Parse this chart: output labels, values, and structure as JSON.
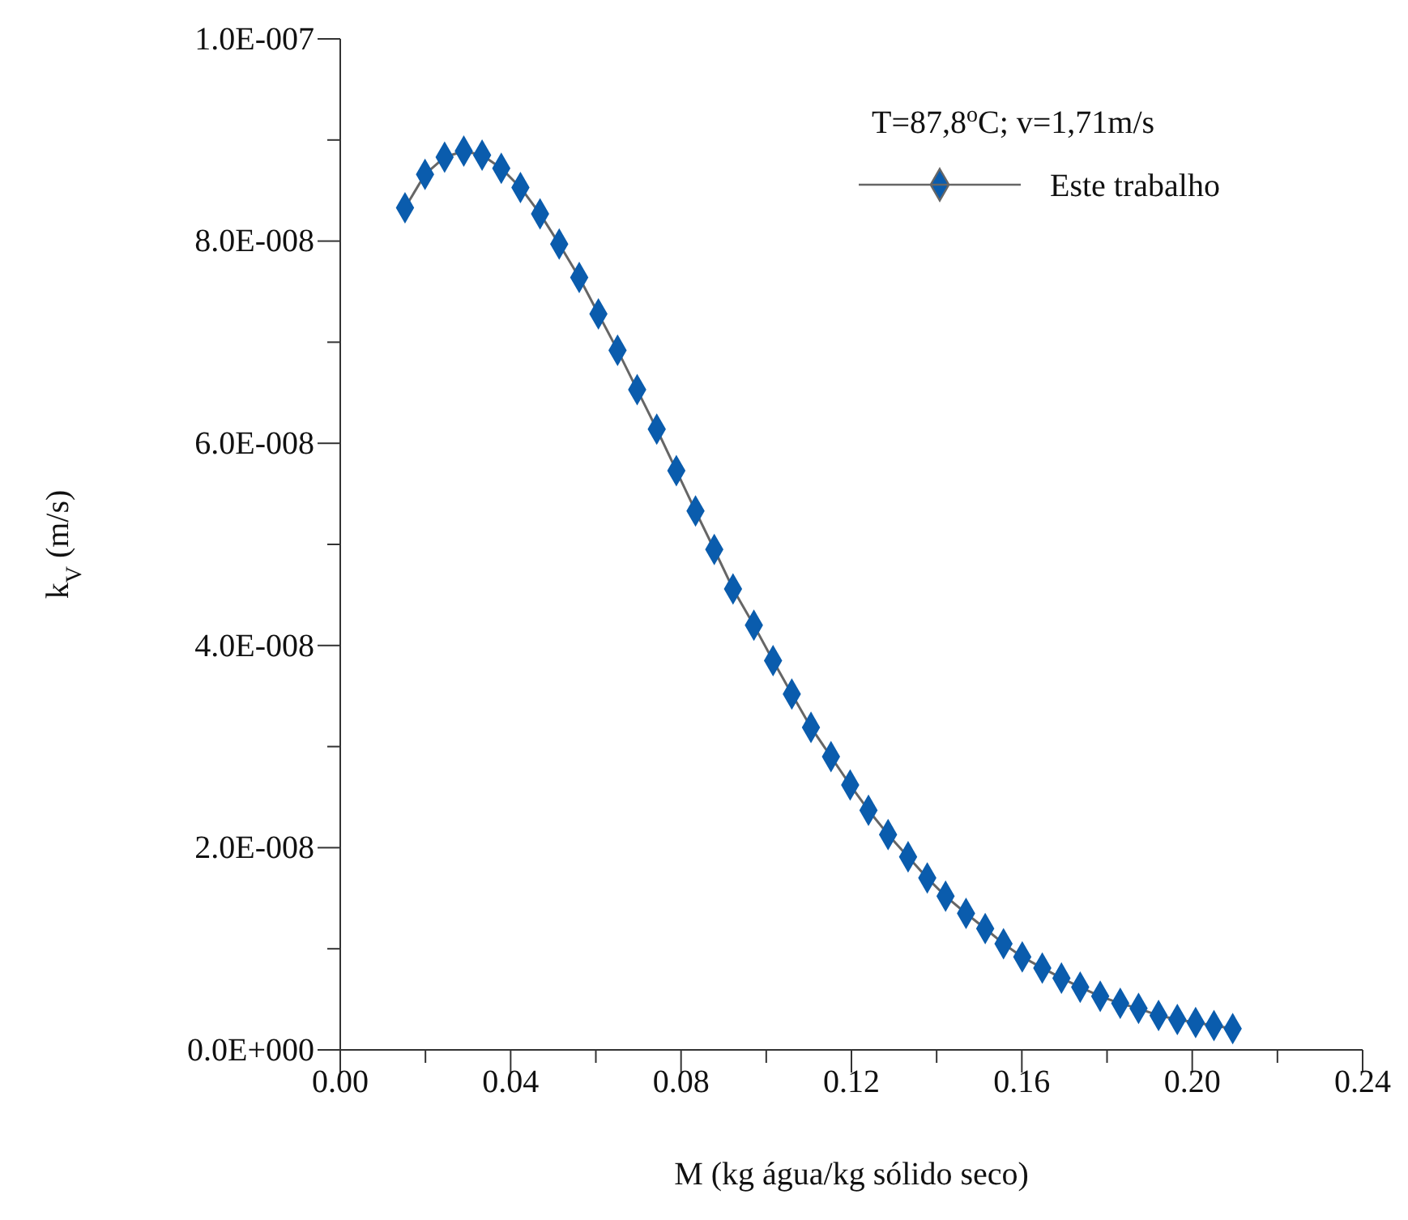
{
  "chart_data": {
    "type": "line",
    "xlabel": "M (kg água/kg sólido seco)",
    "ylabel": "k$_{V}$ (m/s)",
    "legend_title": "T=87,8$^{o}$C; v=1,71m/s",
    "legend": "top right",
    "marker": "diamond",
    "grid": false,
    "xlim": [
      0,
      0.24
    ],
    "ylim": [
      0,
      1e-07
    ],
    "xticks": [
      {
        "value": 0,
        "label": "0.00"
      },
      {
        "value": 0.02,
        "label": null
      },
      {
        "value": 0.04,
        "label": "0.04"
      },
      {
        "value": 0.06,
        "label": null
      },
      {
        "value": 0.08,
        "label": "0.08"
      },
      {
        "value": 0.1,
        "label": null
      },
      {
        "value": 0.12,
        "label": "0.12"
      },
      {
        "value": 0.14,
        "label": null
      },
      {
        "value": 0.16,
        "label": "0.16"
      },
      {
        "value": 0.18,
        "label": null
      },
      {
        "value": 0.2,
        "label": "0.20"
      },
      {
        "value": 0.22,
        "label": null
      },
      {
        "value": 0.24,
        "label": "0.24"
      }
    ],
    "yticks": [
      {
        "value": 0,
        "label": "0.0E+000"
      },
      {
        "value": 1e-08,
        "label": null
      },
      {
        "value": 2e-08,
        "label": "2.0E-008"
      },
      {
        "value": 3e-08,
        "label": null
      },
      {
        "value": 4e-08,
        "label": "4.0E-008"
      },
      {
        "value": 5e-08,
        "label": null
      },
      {
        "value": 6e-08,
        "label": "6.0E-008"
      },
      {
        "value": 7e-08,
        "label": null
      },
      {
        "value": 8e-08,
        "label": "8.0E-008"
      },
      {
        "value": 9e-08,
        "label": null
      },
      {
        "value": 1e-07,
        "label": "1.0E-007"
      }
    ],
    "series": [
      {
        "name": "Este trabalho",
        "color": "#0a5cad",
        "x": [
          0.0152,
          0.0199,
          0.0245,
          0.029,
          0.0333,
          0.0378,
          0.0423,
          0.0469,
          0.0514,
          0.0561,
          0.0606,
          0.0651,
          0.0697,
          0.0743,
          0.0789,
          0.0834,
          0.0878,
          0.0922,
          0.0971,
          0.1016,
          0.106,
          0.1105,
          0.1152,
          0.1197,
          0.124,
          0.1286,
          0.1333,
          0.1378,
          0.1421,
          0.1469,
          0.1514,
          0.1557,
          0.1601,
          0.1648,
          0.1693,
          0.1737,
          0.1784,
          0.1831,
          0.1874,
          0.1921,
          0.1965,
          0.2008,
          0.2051,
          0.2095
        ],
        "values": [
          8.33e-08,
          8.66e-08,
          8.83e-08,
          8.89e-08,
          8.85e-08,
          8.72e-08,
          8.53e-08,
          8.27e-08,
          7.97e-08,
          7.64e-08,
          7.28e-08,
          6.92e-08,
          6.53e-08,
          6.14e-08,
          5.73e-08,
          5.33e-08,
          4.95e-08,
          4.56e-08,
          4.2e-08,
          3.85e-08,
          3.52e-08,
          3.19e-08,
          2.9e-08,
          2.62e-08,
          2.37e-08,
          2.13e-08,
          1.91e-08,
          1.7e-08,
          1.52e-08,
          1.35e-08,
          1.2e-08,
          1.05e-08,
          9.2e-09,
          8.1e-09,
          7.1e-09,
          6.2e-09,
          5.3e-09,
          4.6e-09,
          4.1e-09,
          3.4e-09,
          3e-09,
          2.7e-09,
          2.4e-09,
          2.1e-09
        ]
      }
    ]
  }
}
